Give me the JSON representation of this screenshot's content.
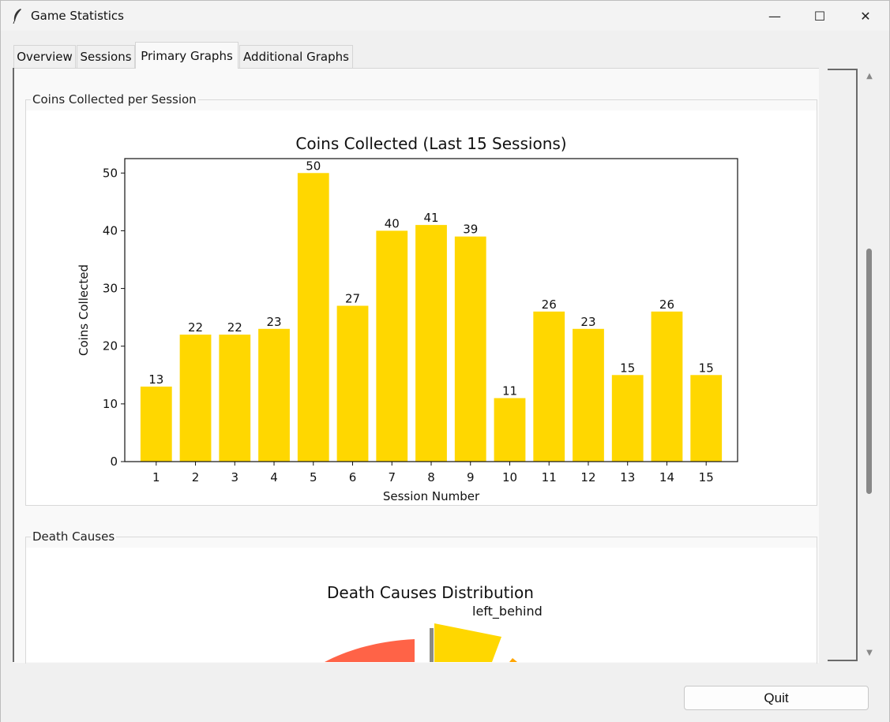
{
  "window": {
    "title": "Game Statistics",
    "minimize_glyph": "—",
    "maximize_glyph": "☐",
    "close_glyph": "✕"
  },
  "tabs": [
    {
      "label": "Overview"
    },
    {
      "label": "Sessions"
    },
    {
      "label": "Primary Graphs",
      "active": true
    },
    {
      "label": "Additional Graphs"
    }
  ],
  "sections": {
    "coins_label": "Coins Collected per Session",
    "death_label": "Death Causes"
  },
  "chart_data": [
    {
      "type": "bar",
      "title": "Coins Collected (Last 15 Sessions)",
      "xlabel": "Session Number",
      "ylabel": "Coins Collected",
      "categories": [
        "1",
        "2",
        "3",
        "4",
        "5",
        "6",
        "7",
        "8",
        "9",
        "10",
        "11",
        "12",
        "13",
        "14",
        "15"
      ],
      "values": [
        13,
        22,
        22,
        23,
        50,
        27,
        40,
        41,
        39,
        11,
        26,
        23,
        15,
        26,
        15
      ],
      "ylim": [
        0,
        52.5
      ],
      "yticks": [
        0,
        10,
        20,
        30,
        40,
        50
      ],
      "bar_color": "#FFD700",
      "data_labels": true,
      "grid": false
    },
    {
      "type": "pie",
      "title": "Death Causes Distribution",
      "labels": [
        "left_behind"
      ],
      "colors": [
        "#FFD700",
        "#FF6347",
        "#FFA500",
        "#8B8B83"
      ]
    }
  ],
  "buttons": {
    "quit_label": "Quit"
  },
  "scrollbar": {
    "up_glyph": "▲",
    "down_glyph": "▼"
  }
}
